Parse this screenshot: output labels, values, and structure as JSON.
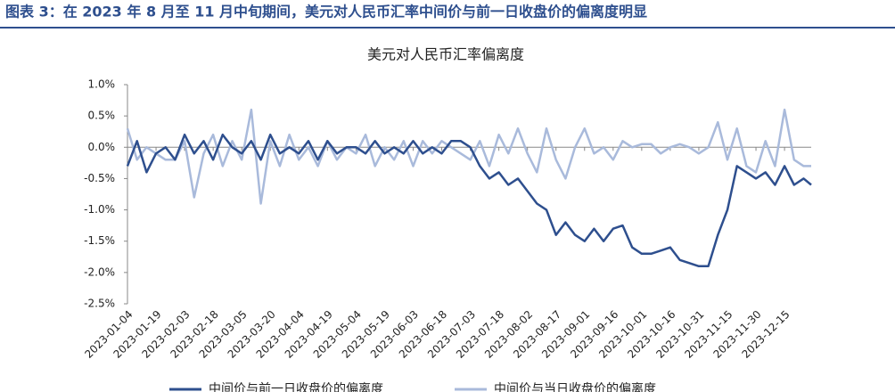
{
  "header": {
    "title": "图表 3：在 2023 年 8 月至 11 月中旬期间，美元对人民币汇率中间价与前一日收盘价的偏离度明显"
  },
  "chart_data": {
    "type": "line",
    "title": "美元对人民币汇率偏离度",
    "x": [
      "2023-01-04",
      "2023-01-09",
      "2023-01-14",
      "2023-01-19",
      "2023-01-24",
      "2023-01-29",
      "2023-02-03",
      "2023-02-08",
      "2023-02-13",
      "2023-02-18",
      "2023-02-23",
      "2023-02-28",
      "2023-03-05",
      "2023-03-10",
      "2023-03-15",
      "2023-03-20",
      "2023-03-25",
      "2023-03-30",
      "2023-04-04",
      "2023-04-09",
      "2023-04-14",
      "2023-04-19",
      "2023-04-24",
      "2023-04-29",
      "2023-05-04",
      "2023-05-09",
      "2023-05-14",
      "2023-05-19",
      "2023-05-24",
      "2023-05-29",
      "2023-06-03",
      "2023-06-08",
      "2023-06-13",
      "2023-06-18",
      "2023-06-23",
      "2023-06-28",
      "2023-07-03",
      "2023-07-08",
      "2023-07-13",
      "2023-07-18",
      "2023-07-23",
      "2023-07-28",
      "2023-08-02",
      "2023-08-07",
      "2023-08-12",
      "2023-08-17",
      "2023-08-22",
      "2023-08-27",
      "2023-09-01",
      "2023-09-06",
      "2023-09-11",
      "2023-09-16",
      "2023-09-21",
      "2023-09-26",
      "2023-10-01",
      "2023-10-06",
      "2023-10-11",
      "2023-10-16",
      "2023-10-21",
      "2023-10-26",
      "2023-10-31",
      "2023-11-05",
      "2023-11-10",
      "2023-11-15",
      "2023-11-20",
      "2023-11-25",
      "2023-11-30",
      "2023-12-05",
      "2023-12-10",
      "2023-12-15",
      "2023-12-20",
      "2023-12-25",
      "2023-12-29"
    ],
    "series": [
      {
        "name": "中间价与前一日收盘价的偏离度",
        "color": "#2e4f8e",
        "values": [
          -0.3,
          0.1,
          -0.4,
          -0.1,
          0.0,
          -0.2,
          0.2,
          -0.1,
          0.1,
          -0.2,
          0.2,
          0.0,
          -0.1,
          0.1,
          -0.2,
          0.2,
          -0.1,
          0.0,
          -0.1,
          0.1,
          -0.2,
          0.1,
          -0.1,
          0.0,
          0.0,
          -0.1,
          0.1,
          -0.1,
          0.0,
          -0.1,
          0.1,
          -0.1,
          0.0,
          -0.1,
          0.1,
          0.1,
          0.0,
          -0.3,
          -0.5,
          -0.4,
          -0.6,
          -0.5,
          -0.7,
          -0.9,
          -1.0,
          -1.4,
          -1.2,
          -1.4,
          -1.5,
          -1.3,
          -1.5,
          -1.3,
          -1.25,
          -1.6,
          -1.7,
          -1.7,
          -1.65,
          -1.6,
          -1.8,
          -1.85,
          -1.9,
          -1.9,
          -1.4,
          -1.0,
          -0.3,
          -0.4,
          -0.5,
          -0.4,
          -0.6,
          -0.3,
          -0.6,
          -0.5,
          -0.6
        ]
      },
      {
        "name": "中间价与当日收盘价的偏离度",
        "color": "#a9badb",
        "values": [
          0.3,
          -0.2,
          0.0,
          -0.1,
          -0.2,
          -0.2,
          0.1,
          -0.8,
          -0.1,
          0.2,
          -0.3,
          0.1,
          -0.2,
          0.6,
          -0.9,
          0.1,
          -0.3,
          0.2,
          -0.2,
          0.0,
          -0.3,
          0.1,
          -0.2,
          0.0,
          -0.1,
          0.2,
          -0.3,
          0.0,
          -0.2,
          0.1,
          -0.3,
          0.1,
          -0.1,
          0.1,
          0.0,
          -0.1,
          -0.2,
          0.1,
          -0.3,
          0.2,
          -0.1,
          0.3,
          -0.1,
          -0.4,
          0.3,
          -0.2,
          -0.5,
          0.0,
          0.3,
          -0.1,
          0.0,
          -0.2,
          0.1,
          0.0,
          0.05,
          0.05,
          -0.1,
          0.0,
          0.05,
          0.0,
          -0.1,
          0.0,
          0.4,
          -0.2,
          0.3,
          -0.3,
          -0.4,
          0.1,
          -0.3,
          0.6,
          -0.2,
          -0.3,
          -0.3
        ]
      }
    ],
    "xlim": [
      "2023-01-04",
      "2023-12-29"
    ],
    "xticks": [
      "2023-01-04",
      "2023-01-19",
      "2023-02-03",
      "2023-02-18",
      "2023-03-05",
      "2023-03-20",
      "2023-04-04",
      "2023-04-19",
      "2023-05-04",
      "2023-05-19",
      "2023-06-03",
      "2023-06-18",
      "2023-07-03",
      "2023-07-18",
      "2023-08-02",
      "2023-08-17",
      "2023-09-01",
      "2023-09-16",
      "2023-10-01",
      "2023-10-16",
      "2023-10-31",
      "2023-11-15",
      "2023-11-30",
      "2023-12-15"
    ],
    "ylim": [
      -2.5,
      1.0
    ],
    "yticks": [
      {
        "value": 1.0,
        "label": "1.0%"
      },
      {
        "value": 0.5,
        "label": "0.5%"
      },
      {
        "value": 0.0,
        "label": "0.0%"
      },
      {
        "value": -0.5,
        "label": "-0.5%"
      },
      {
        "value": -1.0,
        "label": "-1.0%"
      },
      {
        "value": -1.5,
        "label": "-1.5%"
      },
      {
        "value": -2.0,
        "label": "-2.0%"
      },
      {
        "value": -2.5,
        "label": "-2.5%"
      }
    ]
  }
}
